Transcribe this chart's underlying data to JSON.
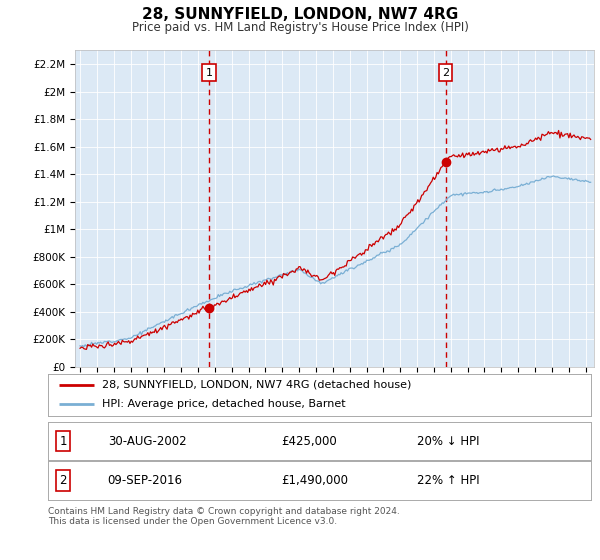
{
  "title": "28, SUNNYFIELD, LONDON, NW7 4RG",
  "subtitle": "Price paid vs. HM Land Registry's House Price Index (HPI)",
  "background_color": "#dce9f5",
  "grid_color": "#ffffff",
  "line1_color": "#cc0000",
  "line2_color": "#7aafd4",
  "dashed_color": "#cc0000",
  "yticks": [
    0,
    200000,
    400000,
    600000,
    800000,
    1000000,
    1200000,
    1400000,
    1600000,
    1800000,
    2000000,
    2200000
  ],
  "ytick_labels": [
    "£0",
    "£200K",
    "£400K",
    "£600K",
    "£800K",
    "£1M",
    "£1.2M",
    "£1.4M",
    "£1.6M",
    "£1.8M",
    "£2M",
    "£2.2M"
  ],
  "xmin": 1994.7,
  "xmax": 2025.5,
  "ymin": 0,
  "ymax": 2300000,
  "sale1_x": 2002.66,
  "sale1_y": 425000,
  "sale2_x": 2016.69,
  "sale2_y": 1490000,
  "legend_line1": "28, SUNNYFIELD, LONDON, NW7 4RG (detached house)",
  "legend_line2": "HPI: Average price, detached house, Barnet",
  "table_row1_num": "1",
  "table_row1_date": "30-AUG-2002",
  "table_row1_price": "£425,000",
  "table_row1_hpi": "20% ↓ HPI",
  "table_row2_num": "2",
  "table_row2_date": "09-SEP-2016",
  "table_row2_price": "£1,490,000",
  "table_row2_hpi": "22% ↑ HPI",
  "footer": "Contains HM Land Registry data © Crown copyright and database right 2024.\nThis data is licensed under the Open Government Licence v3.0.",
  "xticks": [
    1995,
    1996,
    1997,
    1998,
    1999,
    2000,
    2001,
    2002,
    2003,
    2004,
    2005,
    2006,
    2007,
    2008,
    2009,
    2010,
    2011,
    2012,
    2013,
    2014,
    2015,
    2016,
    2017,
    2018,
    2019,
    2020,
    2021,
    2022,
    2023,
    2024,
    2025
  ]
}
